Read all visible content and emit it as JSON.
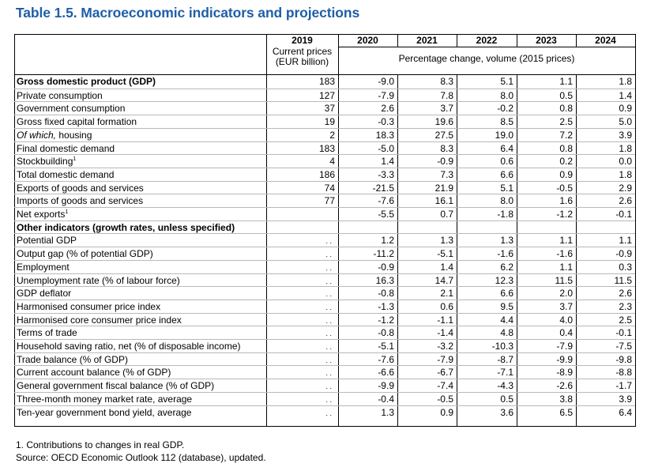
{
  "title": "Table 1.5. Macroeconomic indicators and projections",
  "header": {
    "years": [
      "2019",
      "2020",
      "2021",
      "2022",
      "2023",
      "2024"
    ],
    "col2019_sub1": "Current prices",
    "col2019_sub2": "(EUR billion)",
    "pct_label": "Percentage change, volume (2015 prices)"
  },
  "rows": [
    {
      "label": "Gross domestic product (GDP)",
      "style": "bold",
      "values": [
        "183",
        "-9.0",
        "8.3",
        "5.1",
        "1.1",
        "1.8"
      ]
    },
    {
      "label": "Private consumption",
      "values": [
        "127",
        "-7.9",
        "7.8",
        "8.0",
        "0.5",
        "1.4"
      ]
    },
    {
      "label": "Government consumption",
      "values": [
        "37",
        "2.6",
        "3.7",
        "-0.2",
        "0.8",
        "0.9"
      ]
    },
    {
      "label": "Gross fixed capital formation",
      "values": [
        "19",
        "-0.3",
        "19.6",
        "8.5",
        "2.5",
        "5.0"
      ]
    },
    {
      "label_italic": "Of which,",
      "label": " housing",
      "values": [
        "2",
        "18.3",
        "27.5",
        "19.0",
        "7.2",
        "3.9"
      ]
    },
    {
      "label": "Final domestic demand",
      "values": [
        "183",
        "-5.0",
        "8.3",
        "6.4",
        "0.8",
        "1.8"
      ]
    },
    {
      "label": "Stockbuilding",
      "sup": "1",
      "values": [
        "4",
        "1.4",
        "-0.9",
        "0.6",
        "0.2",
        "0.0"
      ]
    },
    {
      "label": "Total domestic demand",
      "values": [
        "186",
        "-3.3",
        "7.3",
        "6.6",
        "0.9",
        "1.8"
      ]
    },
    {
      "label": "Exports of goods and services",
      "values": [
        "74",
        "-21.5",
        "21.9",
        "5.1",
        "-0.5",
        "2.9"
      ]
    },
    {
      "label": "Imports of goods and services",
      "values": [
        "77",
        "-7.6",
        "16.1",
        "8.0",
        "1.6",
        "2.6"
      ]
    },
    {
      "label": "Net exports",
      "sup": "1",
      "values": [
        "",
        "-5.5",
        "0.7",
        "-1.8",
        "-1.2",
        "-0.1"
      ]
    },
    {
      "label": "Other indicators (growth rates, unless specified)",
      "style": "bold",
      "values": [
        "",
        "",
        "",
        "",
        "",
        ""
      ]
    },
    {
      "label": "Potential GDP",
      "values": ". .",
      "vals": [
        "1.2",
        "1.3",
        "1.3",
        "1.1",
        "1.1"
      ]
    },
    {
      "label": "Output gap (% of potential GDP)",
      "values": ". .",
      "vals": [
        "-11.2",
        "-5.1",
        "-1.6",
        "-1.6",
        "-0.9"
      ]
    },
    {
      "label": "Employment",
      "values": ". .",
      "vals": [
        "-0.9",
        "1.4",
        "6.2",
        "1.1",
        "0.3"
      ]
    },
    {
      "label": "Unemployment rate (% of labour force)",
      "values": ". .",
      "vals": [
        "16.3",
        "14.7",
        "12.3",
        "11.5",
        "11.5"
      ]
    },
    {
      "label": "GDP deflator",
      "values": ". .",
      "vals": [
        "-0.8",
        "2.1",
        "6.6",
        "2.0",
        "2.6"
      ]
    },
    {
      "label": "Harmonised consumer price index",
      "values": ". .",
      "vals": [
        "-1.3",
        "0.6",
        "9.5",
        "3.7",
        "2.3"
      ]
    },
    {
      "label": "Harmonised core consumer price index",
      "values": ". .",
      "vals": [
        "-1.2",
        "-1.1",
        "4.4",
        "4.0",
        "2.5"
      ]
    },
    {
      "label": "Terms of trade",
      "values": ". .",
      "vals": [
        "-0.8",
        "-1.4",
        "4.8",
        "0.4",
        "-0.1"
      ]
    },
    {
      "label": "Household saving ratio, net (% of disposable income)",
      "values": ". .",
      "vals": [
        "-5.1",
        "-3.2",
        "-10.3",
        "-7.9",
        "-7.5"
      ]
    },
    {
      "label": "Trade balance (% of GDP)",
      "values": ". .",
      "vals": [
        "-7.6",
        "-7.9",
        "-8.7",
        "-9.9",
        "-9.8"
      ]
    },
    {
      "label": "Current account balance (% of GDP)",
      "values": ". .",
      "vals": [
        "-6.6",
        "-6.7",
        "-7.1",
        "-8.9",
        "-8.8"
      ]
    },
    {
      "label": "General government fiscal balance (% of GDP)",
      "values": ". .",
      "vals": [
        "-9.9",
        "-7.4",
        "-4.3",
        "-2.6",
        "-1.7"
      ]
    },
    {
      "label": "Three-month money market rate, average",
      "values": ". .",
      "vals": [
        "-0.4",
        "-0.5",
        "0.5",
        "3.8",
        "3.9"
      ]
    },
    {
      "label": "Ten-year government bond yield, average",
      "values": ". .",
      "vals": [
        "1.3",
        "0.9",
        "3.6",
        "6.5",
        "6.4"
      ]
    }
  ],
  "notes": {
    "footnote": "1. Contributions to changes in real GDP.",
    "source": "Source: OECD Economic Outlook 112 (database), updated."
  }
}
